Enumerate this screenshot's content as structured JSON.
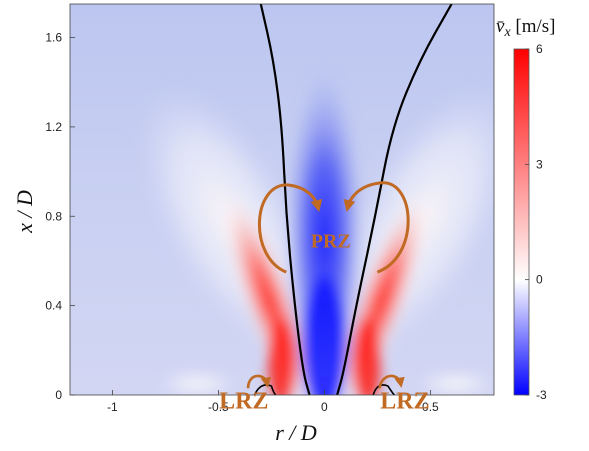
{
  "chart_data": {
    "type": "heatmap",
    "title": "",
    "xlabel": "r / D",
    "ylabel": "x / D",
    "xlim": [
      -1.2,
      0.8
    ],
    "ylim": [
      0,
      1.75
    ],
    "xticks": [
      {
        "value": -1,
        "label": "-1"
      },
      {
        "value": -0.5,
        "label": "-0.5"
      },
      {
        "value": 0,
        "label": "0"
      },
      {
        "value": 0.5,
        "label": "0.5"
      }
    ],
    "yticks": [
      {
        "value": 0,
        "label": "0"
      },
      {
        "value": 0.4,
        "label": "0.4"
      },
      {
        "value": 0.8,
        "label": "0.8"
      },
      {
        "value": 1.2,
        "label": "1.2"
      },
      {
        "value": 1.6,
        "label": "1.6"
      }
    ],
    "colorbar": {
      "title": "v̄x [m/s]",
      "title_main": "v̄",
      "title_sub": "x",
      "title_unit": " [m/s]",
      "min": -3,
      "max": 6,
      "ticks": [
        {
          "value": 6,
          "label": "6"
        },
        {
          "value": 3,
          "label": "3"
        },
        {
          "value": 0,
          "label": "0"
        },
        {
          "value": -3,
          "label": "-3"
        }
      ],
      "colormap": [
        "#0000ff",
        "#ffffff",
        "#ff0000"
      ]
    },
    "field_features": {
      "background_value": 0.7,
      "central_jet_core_value": -2.6,
      "shear_layer_peak_value": 5.5
    },
    "zero_velocity_contours": [
      {
        "name": "left",
        "points": [
          [
            -0.07,
            0
          ],
          [
            -0.1,
            0.1
          ],
          [
            -0.14,
            0.4
          ],
          [
            -0.18,
            0.8
          ],
          [
            -0.2,
            1.2
          ],
          [
            -0.24,
            1.5
          ],
          [
            -0.3,
            1.75
          ]
        ]
      },
      {
        "name": "right",
        "points": [
          [
            0.06,
            0
          ],
          [
            0.09,
            0.1
          ],
          [
            0.15,
            0.4
          ],
          [
            0.24,
            0.8
          ],
          [
            0.32,
            1.2
          ],
          [
            0.45,
            1.5
          ],
          [
            0.6,
            1.75
          ]
        ]
      }
    ],
    "annotations": [
      {
        "text": "PRZ",
        "x": 0.03,
        "y": 0.66,
        "color": "#c06a24"
      },
      {
        "text": "LRZ",
        "x": -0.38,
        "y": -0.06,
        "color": "#c06a24"
      },
      {
        "text": "LRZ",
        "x": 0.38,
        "y": -0.06,
        "color": "#c06a24"
      }
    ],
    "colors": {
      "annotation": "#c06a24",
      "contour": "#000000"
    }
  }
}
